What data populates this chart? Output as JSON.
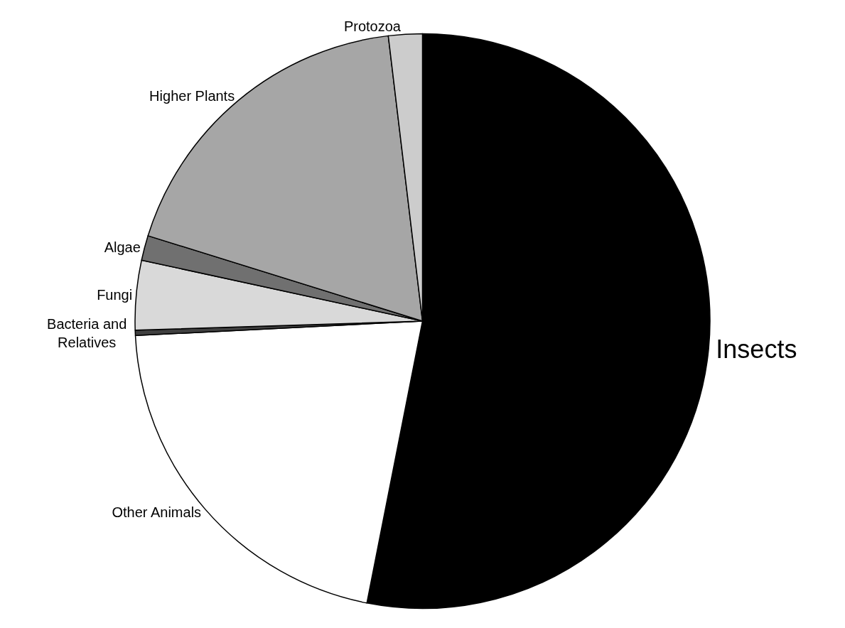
{
  "chart_data": {
    "type": "pie",
    "categories": [
      "Insects",
      "Other Animals",
      "Bacteria and Relatives",
      "Fungi",
      "Algae",
      "Higher Plants",
      "Protozoa"
    ],
    "values": [
      53.1,
      21.1,
      0.3,
      3.9,
      1.4,
      18.3,
      1.9
    ],
    "colors": [
      "#000000",
      "#ffffff",
      "#404040",
      "#d9d9d9",
      "#707070",
      "#a6a6a6",
      "#cccccc"
    ],
    "legend": false
  }
}
